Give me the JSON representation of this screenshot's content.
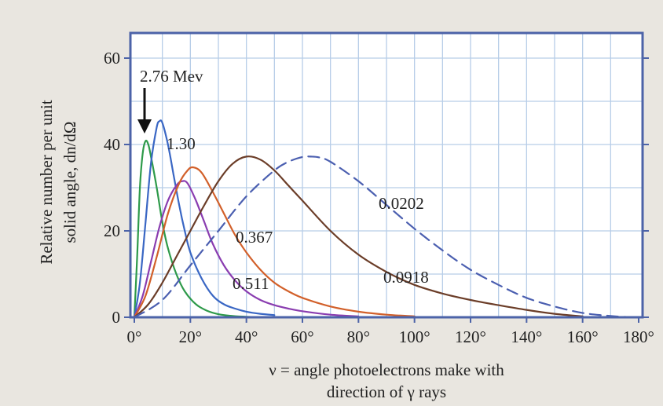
{
  "chart_data": {
    "type": "line",
    "title": "",
    "xlabel_lines": [
      "ν = angle photoelectrons make with",
      "direction of γ rays"
    ],
    "ylabel_lines": [
      "Relative number per unit",
      "solid angle, dn/dΩ"
    ],
    "xlim": [
      0,
      180
    ],
    "ylim": [
      0,
      65
    ],
    "grid": true,
    "x_ticks": [
      0,
      20,
      40,
      60,
      80,
      100,
      120,
      140,
      160,
      180
    ],
    "x_tick_labels": [
      "0°",
      "20°",
      "40°",
      "60°",
      "80°",
      "100°",
      "120°",
      "140°",
      "160°",
      "180°"
    ],
    "y_ticks": [
      0,
      20,
      40,
      60
    ],
    "y_tick_labels": [
      "0",
      "20",
      "40",
      "60"
    ],
    "series": [
      {
        "name": "2.76 Mev",
        "color": "#2e9a4a",
        "dashed": false,
        "x": [
          0,
          1,
          2,
          3,
          4,
          5,
          6,
          8,
          10,
          12,
          15,
          18,
          22,
          26,
          30,
          35,
          40,
          45
        ],
        "y": [
          0,
          14,
          30,
          38,
          40.8,
          40,
          37,
          30,
          22,
          16,
          10,
          6,
          3,
          1.5,
          0.7,
          0.3,
          0.1,
          0
        ]
      },
      {
        "name": "1.30",
        "color": "#3a67c4",
        "dashed": false,
        "x": [
          0,
          2,
          4,
          6,
          8,
          9,
          10,
          12,
          14,
          16,
          18,
          20,
          24,
          28,
          32,
          36,
          40,
          45,
          50
        ],
        "y": [
          0,
          8,
          22,
          36,
          44,
          45.4,
          45,
          40,
          33,
          26,
          20,
          15,
          9,
          5,
          3,
          2,
          1.3,
          0.8,
          0.5
        ]
      },
      {
        "name": "0.511",
        "color": "#8a3db0",
        "dashed": false,
        "x": [
          0,
          3,
          6,
          9,
          12,
          15,
          17,
          19,
          22,
          25,
          28,
          32,
          36,
          40,
          45,
          50,
          55,
          60,
          70,
          80
        ],
        "y": [
          0,
          5,
          13,
          21,
          27,
          30.5,
          31.5,
          31,
          27,
          22,
          17,
          12,
          8.5,
          6,
          4,
          2.8,
          2,
          1.4,
          0.6,
          0.2
        ]
      },
      {
        "name": "0.367",
        "color": "#d2602a",
        "dashed": false,
        "x": [
          0,
          4,
          8,
          12,
          16,
          19,
          21,
          24,
          28,
          32,
          36,
          40,
          45,
          50,
          55,
          60,
          70,
          80,
          90,
          100
        ],
        "y": [
          0,
          5,
          14,
          24,
          31,
          34,
          34.7,
          33.5,
          29,
          24,
          19,
          15,
          11,
          8,
          6,
          4.5,
          2.5,
          1.3,
          0.6,
          0.2
        ]
      },
      {
        "name": "0.0918",
        "color": "#6b3d28",
        "dashed": false,
        "x": [
          0,
          5,
          10,
          15,
          20,
          25,
          30,
          35,
          40,
          45,
          50,
          55,
          60,
          70,
          80,
          90,
          100,
          110,
          120,
          130,
          140,
          150,
          160
        ],
        "y": [
          0,
          3,
          8,
          14,
          20,
          26,
          31.5,
          35.5,
          37.2,
          36.5,
          34,
          30.5,
          27,
          20,
          14.5,
          10.5,
          7.5,
          5.5,
          4,
          2.8,
          1.7,
          0.8,
          0.2
        ]
      },
      {
        "name": "0.0202",
        "color": "#4b5fb0",
        "dashed": true,
        "x": [
          0,
          10,
          20,
          30,
          40,
          50,
          55,
          60,
          63,
          66,
          70,
          80,
          90,
          100,
          110,
          120,
          130,
          140,
          150,
          160,
          170,
          178
        ],
        "y": [
          0,
          4,
          12,
          20,
          28,
          34,
          36,
          37.1,
          37.2,
          37,
          36,
          31.5,
          26,
          20.5,
          15.5,
          11,
          7.5,
          4.5,
          2.5,
          1,
          0.3,
          0
        ]
      }
    ],
    "annotations": {
      "top_label": "2.76 Mev",
      "labels": [
        "1.30",
        "0.511",
        "0.367",
        "0.0918",
        "0.0202"
      ]
    }
  }
}
